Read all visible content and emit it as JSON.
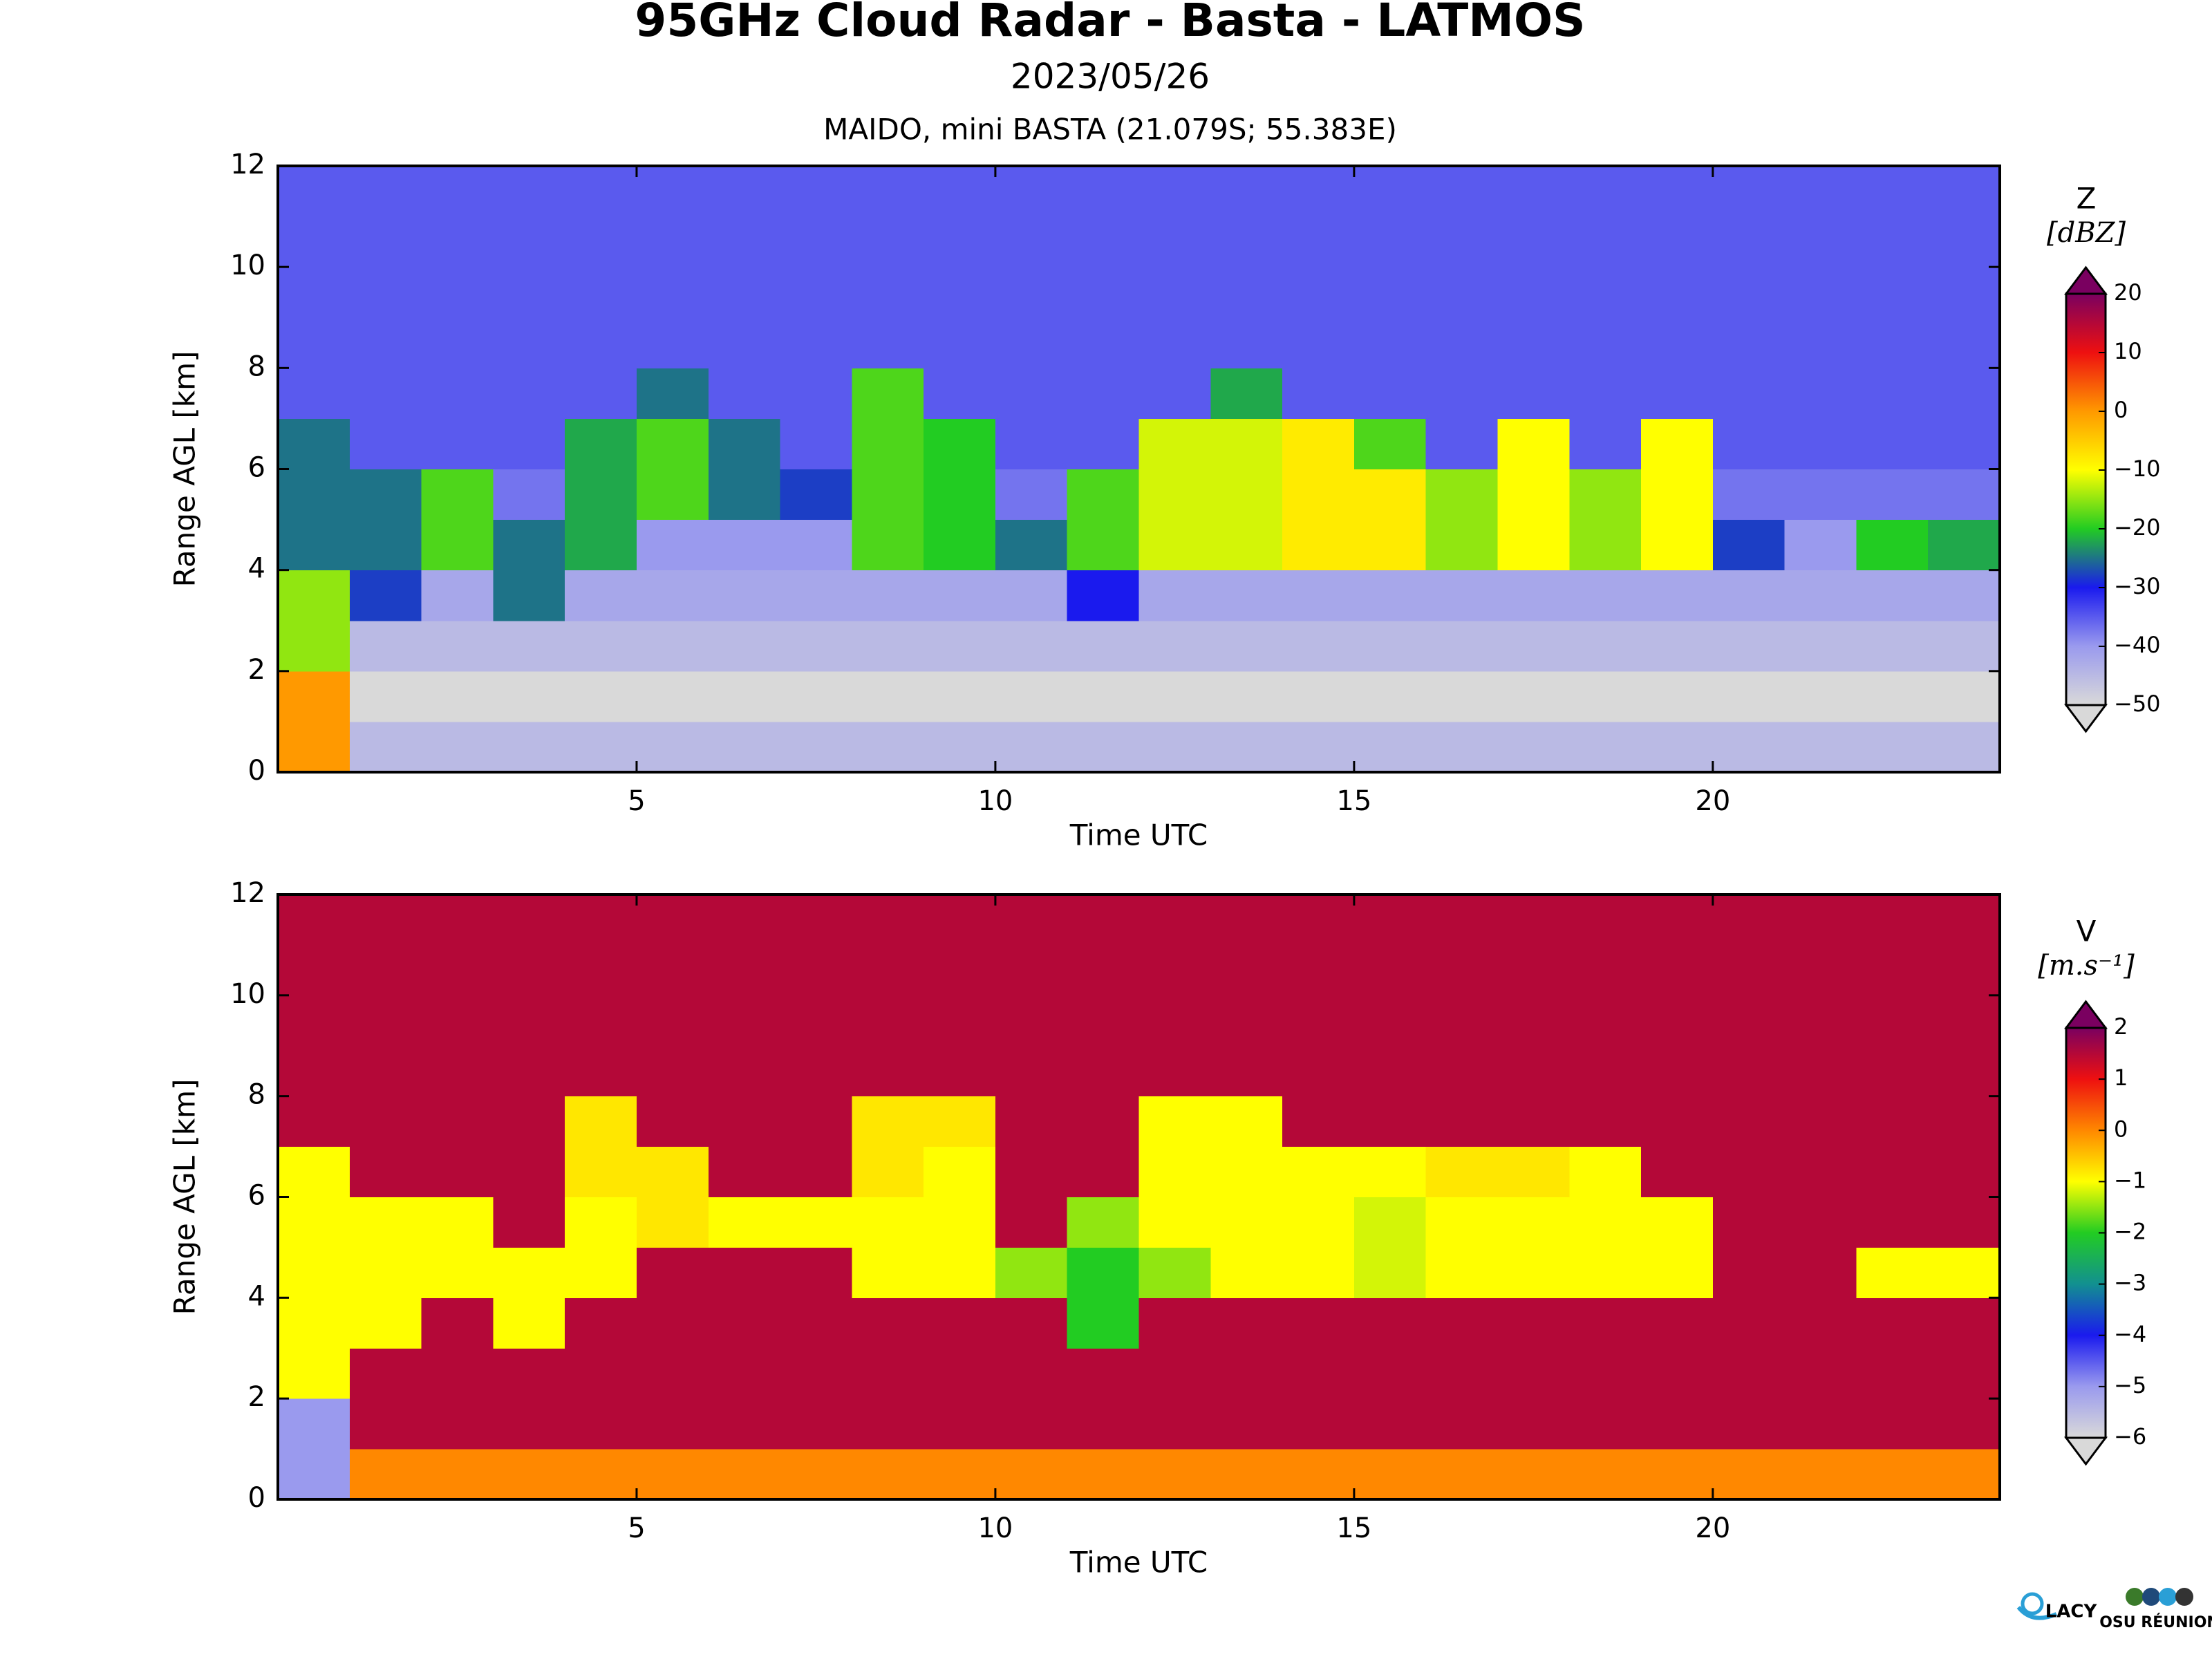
{
  "header": {
    "title": "95GHz Cloud Radar - Basta - LATMOS",
    "date": "2023/05/26",
    "site": "MAIDO, mini BASTA (21.079S; 55.383E)"
  },
  "logos": [
    "LACY",
    "OSU RÉUNION"
  ],
  "chart_data": [
    {
      "type": "heatmap",
      "xlabel": "Time UTC",
      "ylabel": "Range AGL [km]",
      "xlim": [
        0,
        24
      ],
      "ylim": [
        0,
        12
      ],
      "xticks": [
        5,
        10,
        15,
        20
      ],
      "yticks": [
        0,
        2,
        4,
        6,
        8,
        10,
        12
      ],
      "x_edges": [
        0,
        1,
        2,
        3,
        4,
        5,
        6,
        7,
        8,
        9,
        10,
        11,
        12,
        13,
        14,
        15,
        16,
        17,
        18,
        19,
        20,
        21,
        22,
        23,
        24
      ],
      "y_edges": [
        0,
        1,
        2,
        3,
        4,
        5,
        6,
        7,
        8,
        9,
        10,
        11,
        12
      ],
      "values": [
        [
          0,
          -45,
          -45,
          -45,
          -45,
          -45,
          -45,
          -45,
          -45,
          -45,
          -45,
          -45,
          -45,
          -45,
          -45,
          -45,
          -45,
          -45,
          -45,
          -45,
          -45,
          -45,
          -45,
          -45
        ],
        [
          0,
          -50,
          -50,
          -50,
          -50,
          -50,
          -50,
          -50,
          -50,
          -50,
          -50,
          -50,
          -50,
          -50,
          -50,
          -50,
          -50,
          -50,
          -50,
          -50,
          -50,
          -50,
          -50,
          -50
        ],
        [
          -15,
          -45,
          -45,
          -45,
          -45,
          -45,
          -45,
          -45,
          -45,
          -45,
          -45,
          -45,
          -45,
          -45,
          -45,
          -45,
          -45,
          -45,
          -45,
          -45,
          -45,
          -45,
          -45,
          -45
        ],
        [
          -15,
          -28,
          -42,
          -25,
          -42,
          -42,
          -42,
          -42,
          -42,
          -42,
          -42,
          -30,
          -42,
          -42,
          -42,
          -42,
          -42,
          -42,
          -42,
          -42,
          -42,
          -42,
          -42,
          -42
        ],
        [
          -25,
          -25,
          -18,
          -25,
          -22,
          -40,
          -40,
          -40,
          -18,
          -20,
          -25,
          -18,
          -12,
          -12,
          -8,
          -8,
          -15,
          -10,
          -15,
          -10,
          -28,
          -40,
          -20,
          -22
        ],
        [
          -25,
          -25,
          -18,
          -37,
          -22,
          -18,
          -25,
          -28,
          -18,
          -20,
          -37,
          -18,
          -12,
          -12,
          -8,
          -8,
          -15,
          -10,
          -15,
          -10,
          -37,
          -37,
          -37,
          -37
        ],
        [
          -25,
          -35,
          -35,
          -35,
          -22,
          -18,
          -25,
          -35,
          -18,
          -20,
          -35,
          -35,
          -12,
          -12,
          -8,
          -18,
          -35,
          -10,
          -35,
          -10,
          -35,
          -35,
          -35,
          -35
        ],
        [
          -35,
          -35,
          -35,
          -35,
          -35,
          -25,
          -35,
          -35,
          -18,
          -35,
          -35,
          -35,
          -35,
          -22,
          -35,
          -35,
          -35,
          -35,
          -35,
          -35,
          -35,
          -35,
          -35,
          -35
        ],
        [
          -35,
          -35,
          -35,
          -35,
          -35,
          -35,
          -35,
          -35,
          -35,
          -35,
          -35,
          -35,
          -35,
          -35,
          -35,
          -35,
          -35,
          -35,
          -35,
          -35,
          -35,
          -35,
          -35,
          -35
        ],
        [
          -35,
          -35,
          -35,
          -35,
          -35,
          -35,
          -35,
          -35,
          -35,
          -35,
          -35,
          -35,
          -35,
          -35,
          -35,
          -35,
          -35,
          -35,
          -35,
          -35,
          -35,
          -35,
          -35,
          -35
        ],
        [
          -35,
          -35,
          -35,
          -35,
          -35,
          -35,
          -35,
          -35,
          -35,
          -35,
          -35,
          -35,
          -35,
          -35,
          -35,
          -35,
          -35,
          -35,
          -35,
          -35,
          -35,
          -35,
          -35,
          -35
        ],
        [
          -35,
          -35,
          -35,
          -35,
          -35,
          -35,
          -35,
          -35,
          -35,
          -35,
          -35,
          -35,
          -35,
          -35,
          -35,
          -35,
          -35,
          -35,
          -35,
          -35,
          -35,
          -35,
          -35,
          -35
        ]
      ],
      "colorbar": {
        "title": "Z",
        "unit": "[dBZ]",
        "clim": [
          -50,
          20
        ],
        "ticks": [
          {
            "value": -50,
            "label": "−50"
          },
          {
            "value": -40,
            "label": "−40"
          },
          {
            "value": -30,
            "label": "−30"
          },
          {
            "value": -20,
            "label": "−20"
          },
          {
            "value": -10,
            "label": "−10"
          },
          0,
          10,
          20
        ],
        "colormap": [
          "#d9d9d9",
          "#9a9aee",
          "#1a1aee",
          "#22cc22",
          "#ffff00",
          "#ff9900",
          "#ee1010",
          "#7a0060"
        ]
      }
    },
    {
      "type": "heatmap",
      "xlabel": "Time UTC",
      "ylabel": "Range AGL [km]",
      "xlim": [
        0,
        24
      ],
      "ylim": [
        0,
        12
      ],
      "xticks": [
        5,
        10,
        15,
        20
      ],
      "yticks": [
        0,
        2,
        4,
        6,
        8,
        10,
        12
      ],
      "x_edges": [
        0,
        1,
        2,
        3,
        4,
        5,
        6,
        7,
        8,
        9,
        10,
        11,
        12,
        13,
        14,
        15,
        16,
        17,
        18,
        19,
        20,
        21,
        22,
        23,
        24
      ],
      "y_edges": [
        0,
        1,
        2,
        3,
        4,
        5,
        6,
        7,
        8,
        9,
        10,
        11,
        12
      ],
      "values": [
        [
          -5,
          0,
          0,
          0,
          0,
          0,
          0,
          0,
          0,
          0,
          0,
          0,
          0,
          0,
          0,
          0,
          0,
          0,
          0,
          0,
          0,
          0,
          0,
          0
        ],
        [
          -5,
          1.5,
          1.5,
          1.5,
          1.5,
          1.5,
          1.5,
          1.5,
          1.5,
          1.5,
          1.5,
          1.5,
          1.5,
          1.5,
          1.5,
          1.5,
          1.5,
          1.5,
          1.5,
          1.5,
          1.5,
          1.5,
          1.5,
          1.5
        ],
        [
          -1,
          1.5,
          1.5,
          1.5,
          1.5,
          1.5,
          1.5,
          1.5,
          1.5,
          1.5,
          1.5,
          1.5,
          1.5,
          1.5,
          1.5,
          1.5,
          1.5,
          1.5,
          1.5,
          1.5,
          1.5,
          1.5,
          1.5,
          1.5
        ],
        [
          -1,
          -1,
          1.5,
          -1,
          1.5,
          1.5,
          1.5,
          1.5,
          1.5,
          1.5,
          1.5,
          -2,
          1.5,
          1.5,
          1.5,
          1.5,
          1.5,
          1.5,
          1.5,
          1.5,
          1.5,
          1.5,
          1.5,
          1.5
        ],
        [
          -1,
          -1,
          -1,
          -1,
          -1,
          1.5,
          1.5,
          1.5,
          -1,
          -1,
          -1.5,
          -2,
          -1.5,
          -1,
          -1,
          -1.2,
          -1,
          -1,
          -1,
          -1,
          1.5,
          1.5,
          -1,
          -1
        ],
        [
          -1,
          -1,
          -1,
          1.5,
          -1,
          -0.8,
          -1,
          -1,
          -1,
          -1,
          1.5,
          -1.5,
          -1,
          -1,
          -1,
          -1.2,
          -1,
          -1,
          -1,
          -1,
          1.5,
          1.5,
          1.5,
          1.5
        ],
        [
          -1,
          1.5,
          1.5,
          1.5,
          -0.8,
          -0.8,
          1.5,
          1.5,
          -0.8,
          -1,
          1.5,
          1.5,
          -1,
          -1,
          -1,
          -1,
          -0.8,
          -0.8,
          -1,
          1.5,
          1.5,
          1.5,
          1.5,
          1.5
        ],
        [
          1.5,
          1.5,
          1.5,
          1.5,
          -0.8,
          1.5,
          1.5,
          1.5,
          -0.8,
          -0.8,
          1.5,
          1.5,
          -1,
          -1,
          1.5,
          1.5,
          1.5,
          1.5,
          1.5,
          1.5,
          1.5,
          1.5,
          1.5,
          1.5
        ],
        [
          1.5,
          1.5,
          1.5,
          1.5,
          1.5,
          1.5,
          1.5,
          1.5,
          1.5,
          1.5,
          1.5,
          1.5,
          1.5,
          1.5,
          1.5,
          1.5,
          1.5,
          1.5,
          1.5,
          1.5,
          1.5,
          1.5,
          1.5,
          1.5
        ],
        [
          1.5,
          1.5,
          1.5,
          1.5,
          1.5,
          1.5,
          1.5,
          1.5,
          1.5,
          1.5,
          1.5,
          1.5,
          1.5,
          1.5,
          1.5,
          1.5,
          1.5,
          1.5,
          1.5,
          1.5,
          1.5,
          1.5,
          1.5,
          1.5
        ],
        [
          1.5,
          1.5,
          1.5,
          1.5,
          1.5,
          1.5,
          1.5,
          1.5,
          1.5,
          1.5,
          1.5,
          1.5,
          1.5,
          1.5,
          1.5,
          1.5,
          1.5,
          1.5,
          1.5,
          1.5,
          1.5,
          1.5,
          1.5,
          1.5
        ],
        [
          1.5,
          1.5,
          1.5,
          1.5,
          1.5,
          1.5,
          1.5,
          1.5,
          1.5,
          1.5,
          1.5,
          1.5,
          1.5,
          1.5,
          1.5,
          1.5,
          1.5,
          1.5,
          1.5,
          1.5,
          1.5,
          1.5,
          1.5,
          1.5
        ]
      ],
      "colorbar": {
        "title": "V",
        "unit": "[m.s⁻¹]",
        "clim": [
          -6,
          2
        ],
        "ticks": [
          {
            "value": -6,
            "label": "−6"
          },
          {
            "value": -5,
            "label": "−5"
          },
          {
            "value": -4,
            "label": "−4"
          },
          {
            "value": -3,
            "label": "−3"
          },
          {
            "value": -2,
            "label": "−2"
          },
          {
            "value": -1,
            "label": "−1"
          },
          0,
          1,
          2
        ],
        "colormap": [
          "#d9d9d9",
          "#9a9aee",
          "#1a1aee",
          "#129090",
          "#22cc22",
          "#ffff00",
          "#ff8800",
          "#ee1010",
          "#7a0060"
        ]
      }
    }
  ]
}
